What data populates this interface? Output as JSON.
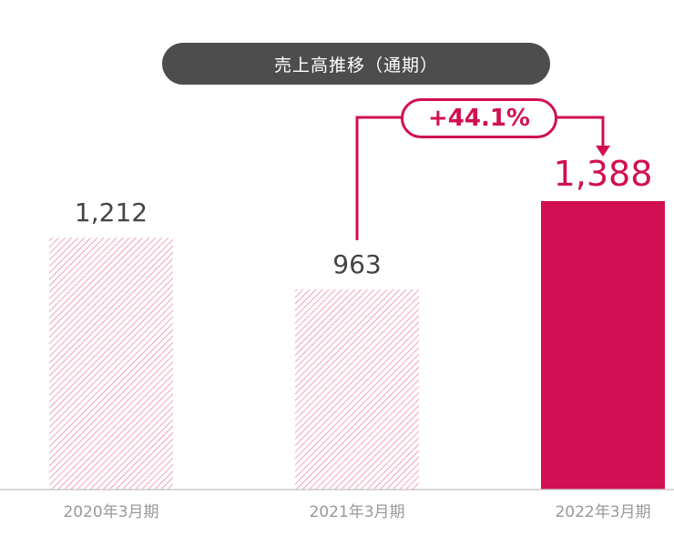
{
  "chart_data": {
    "type": "bar",
    "title": "売上高推移（通期）",
    "categories": [
      "2020年3月期",
      "2021年3月期",
      "2022年3月期"
    ],
    "values": [
      1212,
      963,
      1388
    ],
    "value_labels": [
      "1,212",
      "963",
      "1,388"
    ],
    "highlight_index": 2,
    "annotation": {
      "text": "+44.1%",
      "from_category": "2021年3月期",
      "to_category": "2022年3月期"
    },
    "xlabel": "",
    "ylabel": "",
    "ylim": [
      0,
      1400
    ],
    "grid": false
  },
  "colors": {
    "highlight": "#d10f52",
    "hatch": "#e8739b",
    "pill_bg": "#4d4d4d",
    "value_text": "#444444",
    "axis_label": "#999999"
  }
}
